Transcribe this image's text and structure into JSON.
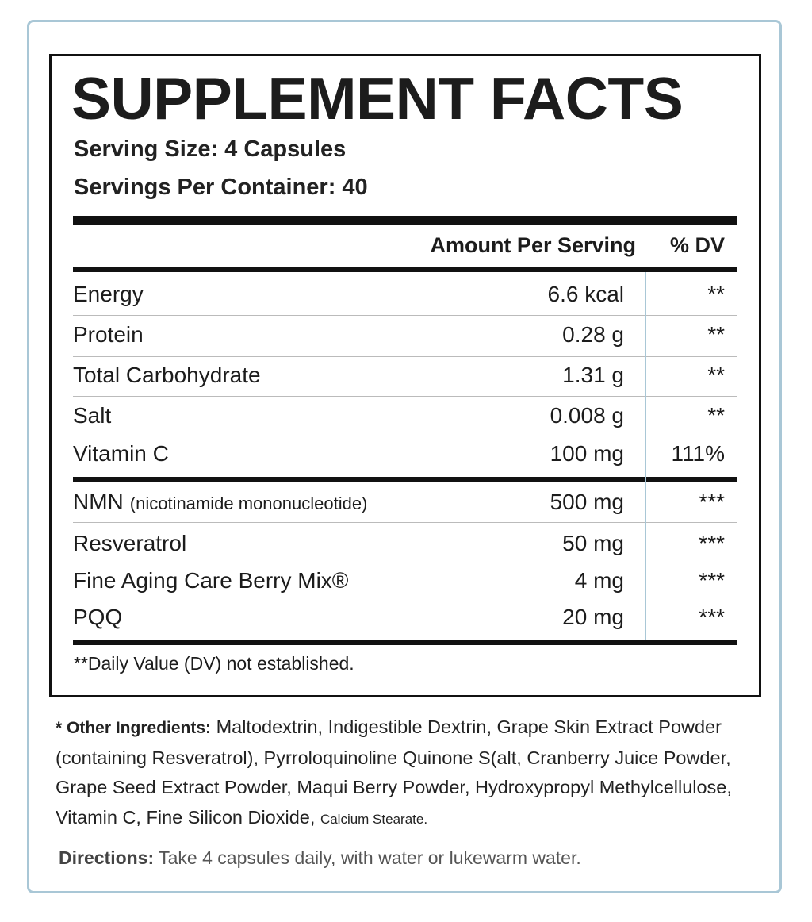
{
  "title": "SUPPLEMENT FACTS",
  "serving_size": "Serving Size: 4 Capsules",
  "servings_per_container": "Servings Per Container: 40",
  "table": {
    "header": [
      "Amount Per Serving",
      "% DV"
    ],
    "rows": [
      {
        "name": "Energy",
        "amount": "6.6 kcal",
        "dv": "**"
      },
      {
        "name": "Protein",
        "amount": "0.28 g",
        "dv": "**"
      },
      {
        "name": "Total Carbohydrate",
        "amount": "1.31 g",
        "dv": "**"
      },
      {
        "name": "Salt",
        "amount": "0.008 g",
        "dv": "**"
      },
      {
        "name": "Vitamin C",
        "amount": "100 mg",
        "dv": "111%"
      },
      {
        "name": "NMN",
        "note": "(nicotinamide mononucleotide)",
        "amount": "500 mg",
        "dv": "***"
      },
      {
        "name": "Resveratrol",
        "amount": "50 mg",
        "dv": "***"
      },
      {
        "name": "Fine Aging Care Berry Mix®",
        "amount": "4 mg",
        "dv": "***"
      },
      {
        "name": "PQQ",
        "amount": "20 mg",
        "dv": "***"
      }
    ]
  },
  "footnote": "**Daily Value (DV) not established.",
  "other_ingredients": {
    "label": "* Other Ingredients:",
    "text": "Maltodextrin, Indigestible Dextrin, Grape Skin Extract Powder (containing Resveratrol), Pyrroloquinoline Quinone S(alt, Cranberry Juice Powder, Grape Seed Extract Powder, Maqui Berry Powder, Hydroxypropyl Methylcellulose, Vitamin C, Fine Silicon Dioxide,",
    "small_text": "Calcium Stearate."
  },
  "directions": {
    "label": "Directions:",
    "text": "Take 4 capsules daily, with water or lukewarm water."
  }
}
